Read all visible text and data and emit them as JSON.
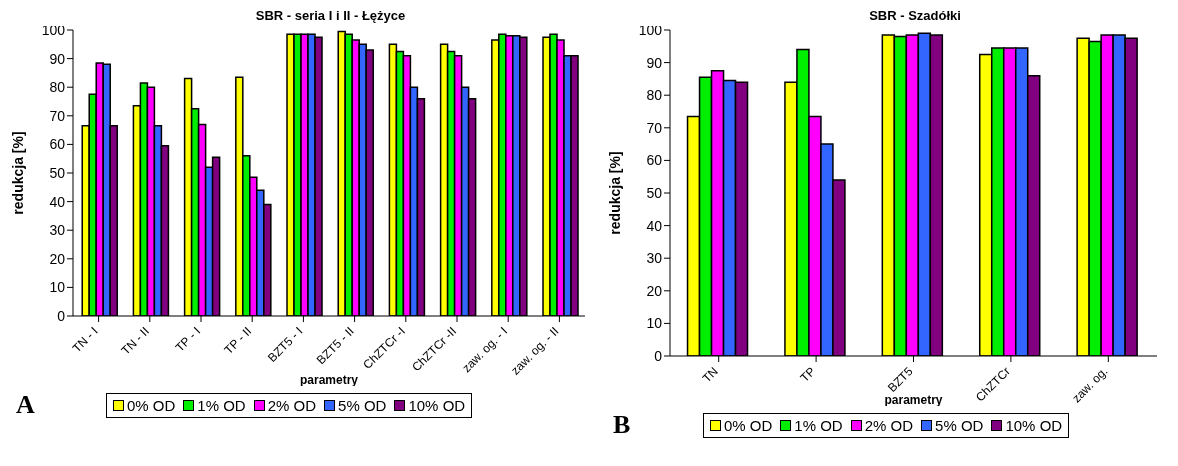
{
  "chart_data": [
    {
      "type": "bar",
      "title": "SBR - seria I i II - Łężyce",
      "xlabel": "parametry",
      "ylabel": "redukcja [%]",
      "annotations": [
        "A"
      ],
      "categories": [
        "TN - I",
        "TN - II",
        "TP - I",
        "TP - II",
        "BZT5 - I",
        "BZT5 - II",
        "ChZTCr -I",
        "ChZTCr -II",
        "zaw. og. - I",
        "zaw. og. - II"
      ],
      "series": [
        {
          "name": "0% OD",
          "color": "#ffff00",
          "values": [
            66.5,
            73.5,
            83,
            83.5,
            98.5,
            99.5,
            95,
            95,
            96.5,
            97.5
          ]
        },
        {
          "name": "1% OD",
          "color": "#00ee00",
          "values": [
            77.5,
            81.5,
            72.5,
            56,
            98.5,
            98.5,
            92.5,
            92.5,
            98.5,
            98.5
          ]
        },
        {
          "name": "2% OD",
          "color": "#ff00ff",
          "values": [
            88.5,
            80,
            67,
            48.5,
            98.5,
            96.5,
            91,
            91,
            98,
            96.5
          ]
        },
        {
          "name": "5% OD",
          "color": "#3366ff",
          "values": [
            88,
            66.5,
            52,
            44,
            98.5,
            95,
            80,
            80,
            98,
            91
          ]
        },
        {
          "name": "10% OD",
          "color": "#800080",
          "values": [
            66.5,
            59.5,
            55.5,
            39,
            97.5,
            93,
            76,
            76,
            97.5,
            91
          ]
        }
      ],
      "ylim": [
        0,
        100
      ],
      "yticks": [
        0,
        10,
        20,
        30,
        40,
        50,
        60,
        70,
        80,
        90,
        100
      ],
      "grid": false,
      "legend": "bottom"
    },
    {
      "type": "bar",
      "title": "SBR -  Szadółki",
      "xlabel": "parametry",
      "ylabel": "redukcja [%]",
      "annotations": [
        "B"
      ],
      "categories": [
        "TN",
        "TP",
        "BZT5",
        "ChZTCr",
        "zaw. og."
      ],
      "series": [
        {
          "name": "0% OD",
          "color": "#ffff00",
          "values": [
            73.5,
            84,
            98.5,
            92.5,
            97.5
          ]
        },
        {
          "name": "1% OD",
          "color": "#00ee00",
          "values": [
            85.5,
            94,
            98,
            94.5,
            96.5
          ]
        },
        {
          "name": "2% OD",
          "color": "#ff00ff",
          "values": [
            87.5,
            73.5,
            98.5,
            94.5,
            98.5
          ]
        },
        {
          "name": "5% OD",
          "color": "#3366ff",
          "values": [
            84.5,
            65,
            99,
            94.5,
            98.5
          ]
        },
        {
          "name": "10% OD",
          "color": "#800080",
          "values": [
            84,
            54,
            98.5,
            86,
            97.5
          ]
        }
      ],
      "ylim": [
        0,
        100
      ],
      "yticks": [
        0,
        10,
        20,
        30,
        40,
        50,
        60,
        70,
        80,
        90,
        100
      ],
      "grid": false,
      "legend": "bottom"
    }
  ]
}
